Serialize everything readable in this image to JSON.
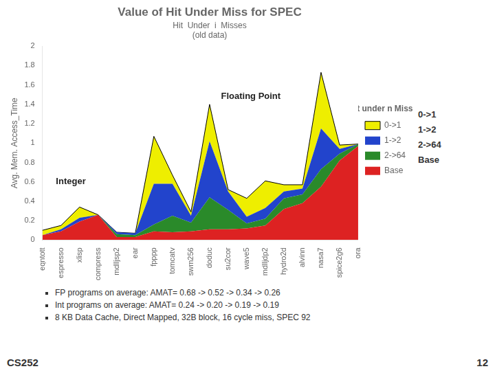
{
  "chart_data": {
    "type": "area",
    "title": "Value of Hit Under Miss for SPEC",
    "watermark": "Hit  Under  i  Misses",
    "subtitle": "(old data)",
    "ylabel": "Avg. Mem. Access_Time",
    "categories": [
      "eqntott",
      "espresso",
      "xlisp",
      "compress",
      "mdlljsp2",
      "ear",
      "fpppp",
      "tomcatv",
      "swm256",
      "doduc",
      "su2cor",
      "wave5",
      "mdlljdp2",
      "hydro2d",
      "alvinn",
      "nasa7",
      "spice2g6",
      "ora"
    ],
    "series": [
      {
        "name": "Base",
        "color": "#dd2222",
        "values": [
          0.05,
          0.09,
          0.19,
          0.26,
          0.03,
          0.03,
          0.09,
          0.08,
          0.09,
          0.11,
          0.11,
          0.12,
          0.15,
          0.32,
          0.38,
          0.55,
          0.82,
          0.97
        ]
      },
      {
        "name": "2->64",
        "color": "#2a8a2a",
        "values": [
          0.0,
          0.0,
          0.0,
          0.0,
          0.03,
          0.02,
          0.07,
          0.17,
          0.09,
          0.33,
          0.2,
          0.05,
          0.07,
          0.11,
          0.09,
          0.18,
          0.07,
          0.02
        ]
      },
      {
        "name": "1->2",
        "color": "#2244cc",
        "values": [
          0.0,
          0.02,
          0.04,
          0.0,
          0.02,
          0.02,
          0.42,
          0.33,
          0.07,
          0.58,
          0.19,
          0.07,
          0.11,
          0.07,
          0.06,
          0.42,
          0.05,
          0.0
        ]
      },
      {
        "name": "0->1",
        "color": "#eeee00",
        "values": [
          0.05,
          0.04,
          0.11,
          0.0,
          0.0,
          0.0,
          0.49,
          0.09,
          0.04,
          0.38,
          0.02,
          0.19,
          0.28,
          0.07,
          0.04,
          0.58,
          0.04,
          0.0
        ]
      }
    ],
    "stacked": true,
    "ylim": [
      0,
      2.0
    ],
    "yticks": [
      0,
      0.2,
      0.4,
      0.6,
      0.8,
      1,
      1.2,
      1.4,
      1.6,
      1.8,
      2
    ],
    "grid": false,
    "legend": "right",
    "legend_title": "“Hit under n Misses”",
    "annotations": [
      "Integer",
      "Floating Point"
    ],
    "side_labels": [
      "0->1",
      "1->2",
      "2->64",
      "Base"
    ],
    "bullets": [
      "FP programs on average: AMAT= 0.68 -> 0.52 -> 0.34 -> 0.26",
      "Int programs on average: AMAT= 0.24 -> 0.20 -> 0.19 -> 0.19",
      "8 KB Data Cache, Direct Mapped, 32B block, 16 cycle miss, SPEC 92"
    ],
    "footer": [
      "CS252",
      "12"
    ]
  }
}
